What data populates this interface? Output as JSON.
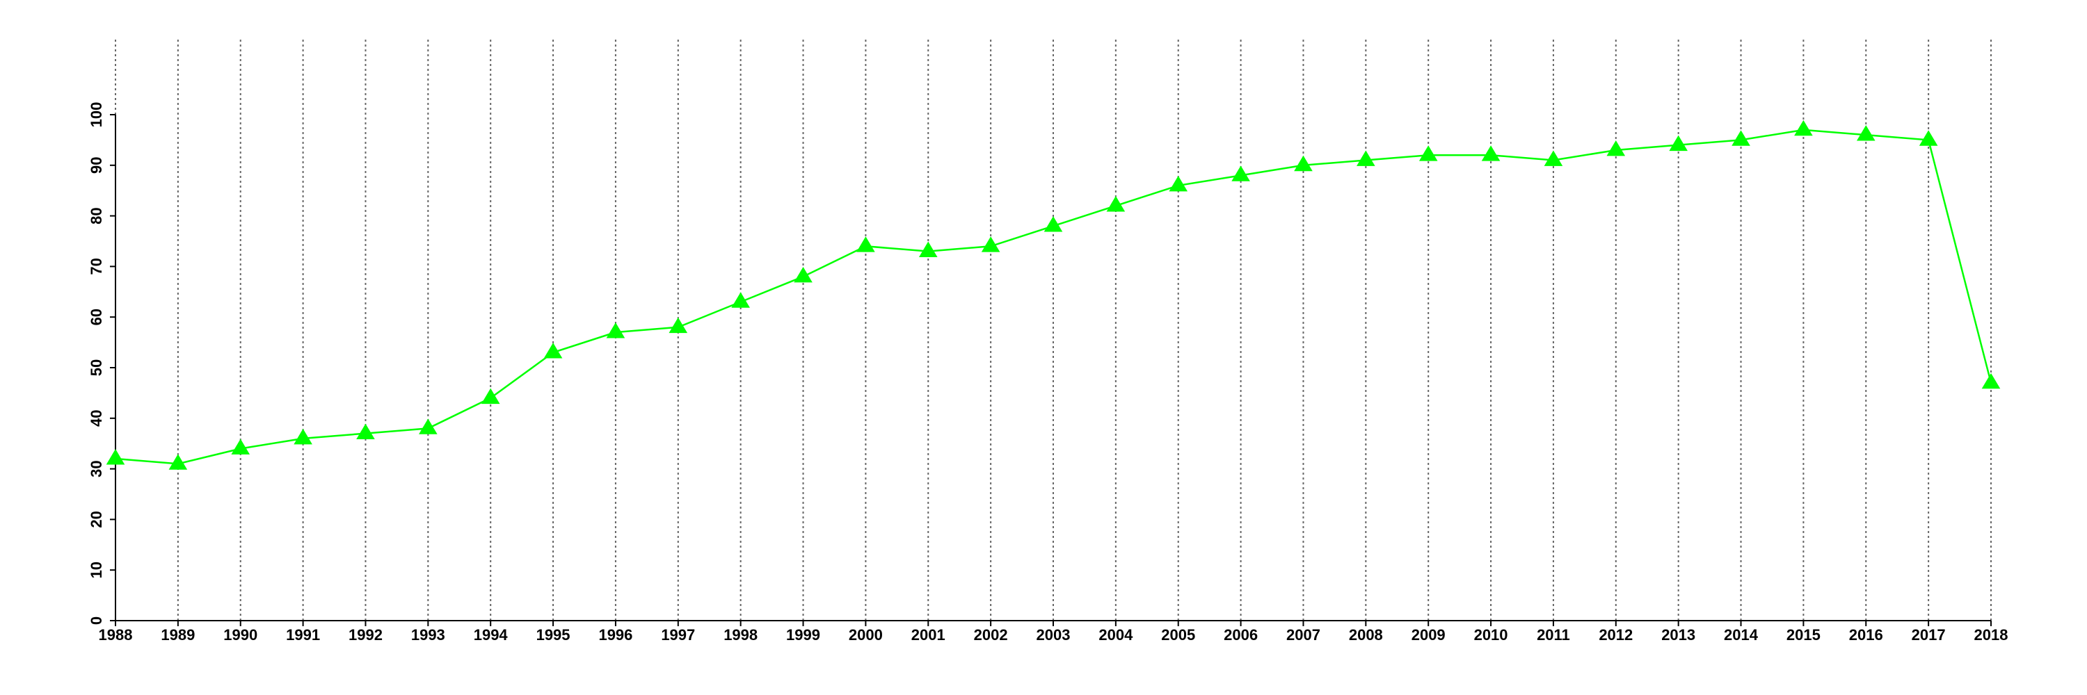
{
  "chart_data": {
    "type": "line",
    "x": [
      1988,
      1989,
      1990,
      1991,
      1992,
      1993,
      1994,
      1995,
      1996,
      1997,
      1998,
      1999,
      2000,
      2001,
      2002,
      2003,
      2004,
      2005,
      2006,
      2007,
      2008,
      2009,
      2010,
      2011,
      2012,
      2013,
      2014,
      2015,
      2016,
      2017,
      2018
    ],
    "series": [
      {
        "color": "#00ff00",
        "marker": "triangle",
        "values": [
          32,
          31,
          34,
          36,
          37,
          38,
          44,
          53,
          57,
          58,
          63,
          68,
          74,
          73,
          74,
          78,
          82,
          86,
          88,
          90,
          91,
          92,
          92,
          91,
          93,
          94,
          95,
          97,
          96,
          95,
          47
        ]
      }
    ],
    "xlim": [
      1988,
      2018
    ],
    "xticks": [
      1988,
      1989,
      1990,
      1991,
      1992,
      1993,
      1994,
      1995,
      1996,
      1997,
      1998,
      1999,
      2000,
      2001,
      2002,
      2003,
      2004,
      2005,
      2006,
      2007,
      2008,
      2009,
      2010,
      2011,
      2012,
      2013,
      2014,
      2015,
      2016,
      2017,
      2018
    ],
    "ylim": [
      0,
      100
    ],
    "yticks": [
      0,
      10,
      20,
      30,
      40,
      50,
      60,
      70,
      80,
      90,
      100
    ],
    "grid": "x"
  }
}
